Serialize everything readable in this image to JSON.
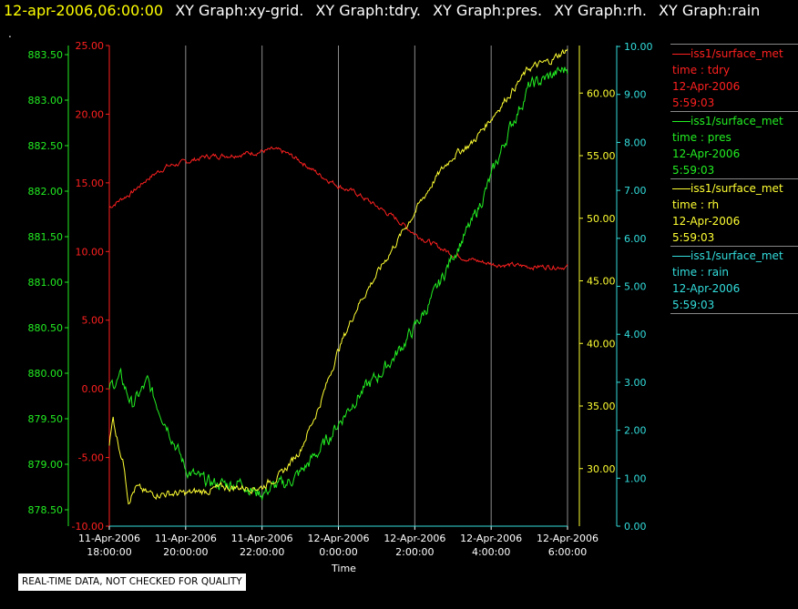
{
  "header": {
    "timestamp": "12-apr-2006,06:00:00",
    "titles": [
      "XY Graph:xy-grid.",
      "XY Graph:tdry.",
      "XY Graph:pres.",
      "XY Graph:rh.",
      "XY Graph:rain"
    ]
  },
  "dot": ".",
  "footer_note": "REAL-TIME DATA, NOT CHECKED FOR QUALITY",
  "colors": {
    "background": "#000000",
    "tdry": "#ff2020",
    "pres": "#22ee22",
    "rh": "#ffff33",
    "rain": "#33dddd",
    "grid": "#ffffff"
  },
  "legend": [
    {
      "source": "iss1/surface_met",
      "var": "time : tdry",
      "date": "12-Apr-2006",
      "time": "5:59:03",
      "color": "#ff2020"
    },
    {
      "source": "iss1/surface_met",
      "var": "time : pres",
      "date": "12-Apr-2006",
      "time": "5:59:03",
      "color": "#22ee22"
    },
    {
      "source": "iss1/surface_met",
      "var": "time : rh",
      "date": "12-Apr-2006",
      "time": "5:59:03",
      "color": "#ffff33"
    },
    {
      "source": "iss1/surface_met",
      "var": "time : rain",
      "date": "12-Apr-2006",
      "time": "5:59:03",
      "color": "#33dddd"
    }
  ],
  "chart_data": {
    "type": "line",
    "xlabel": "Time",
    "x_ticks": [
      {
        "date": "11-Apr-2006",
        "time": "18:00:00"
      },
      {
        "date": "11-Apr-2006",
        "time": "20:00:00"
      },
      {
        "date": "11-Apr-2006",
        "time": "22:00:00"
      },
      {
        "date": "12-Apr-2006",
        "time": "0:00:00"
      },
      {
        "date": "12-Apr-2006",
        "time": "2:00:00"
      },
      {
        "date": "12-Apr-2006",
        "time": "4:00:00"
      },
      {
        "date": "12-Apr-2006",
        "time": "6:00:00"
      }
    ],
    "x_hours": [
      0,
      2,
      4,
      6,
      8,
      10,
      12
    ],
    "xlim": [
      0,
      12
    ],
    "grid": "vertical lines at x ticks",
    "axes": {
      "pres": {
        "ticks": [
          "878.50",
          "879.00",
          "879.50",
          "880.00",
          "880.50",
          "881.00",
          "881.50",
          "882.00",
          "882.50",
          "883.00",
          "883.50"
        ],
        "ylim": [
          878.32,
          883.6
        ],
        "color": "#22ee22"
      },
      "tdry": {
        "ticks": [
          "-10.00",
          "-5.00",
          "0.00",
          "5.00",
          "10.00",
          "15.00",
          "20.00",
          "25.00"
        ],
        "ylim": [
          -10,
          25
        ],
        "color": "#ff2020"
      },
      "rh": {
        "ticks": [
          "30.00",
          "35.00",
          "40.00",
          "45.00",
          "50.00",
          "55.00",
          "60.00"
        ],
        "ylim": [
          25.4,
          63.8
        ],
        "color": "#ffff33"
      },
      "rain": {
        "ticks": [
          "0.00",
          "1.00",
          "2.00",
          "3.00",
          "4.00",
          "5.00",
          "6.00",
          "7.00",
          "8.00",
          "9.00",
          "10.00"
        ],
        "ylim": [
          0,
          10.02
        ],
        "color": "#33dddd"
      }
    },
    "series": [
      {
        "name": "tdry",
        "axis": "tdry",
        "noise": 0.15,
        "x": [
          0,
          0.3,
          0.6,
          1,
          1.5,
          2,
          2.5,
          3,
          3.5,
          4,
          4.3,
          4.6,
          5,
          5.5,
          6,
          6.5,
          7,
          7.5,
          8,
          8.5,
          9,
          9.5,
          10,
          10.5,
          11,
          11.5,
          12
        ],
        "y": [
          13.2,
          13.8,
          14.3,
          15.3,
          16.2,
          16.5,
          16.9,
          17.0,
          17.1,
          17.3,
          17.4,
          17.2,
          16.6,
          15.6,
          14.8,
          14.2,
          13.3,
          12.4,
          11.3,
          10.5,
          9.8,
          9.4,
          9.1,
          9.0,
          8.9,
          8.9,
          8.9
        ]
      },
      {
        "name": "pres",
        "axis": "pres",
        "noise": 0.06,
        "x": [
          0,
          0.3,
          0.6,
          1,
          1.2,
          1.5,
          1.8,
          2,
          2.3,
          2.6,
          3,
          3.5,
          3.8,
          4,
          4.3,
          4.6,
          5,
          5.3,
          5.6,
          6,
          6.5,
          7,
          7.5,
          8,
          8.5,
          9,
          9.5,
          10,
          10.5,
          11,
          11.5,
          12
        ],
        "y": [
          879.85,
          879.95,
          879.65,
          879.9,
          879.7,
          879.45,
          879.15,
          878.95,
          878.85,
          878.8,
          878.78,
          878.8,
          878.7,
          878.68,
          878.75,
          878.78,
          878.9,
          879.05,
          879.2,
          879.45,
          879.75,
          879.95,
          880.2,
          880.5,
          880.85,
          881.3,
          881.65,
          882.15,
          882.7,
          883.15,
          883.25,
          883.35
        ]
      },
      {
        "name": "rh",
        "axis": "rh",
        "noise": 0.25,
        "x": [
          0,
          0.1,
          0.2,
          0.4,
          0.5,
          0.7,
          1,
          1.5,
          2,
          2.5,
          3,
          3.5,
          4,
          4.2,
          4.5,
          5,
          5.5,
          6,
          6.5,
          7,
          7.5,
          8,
          8.5,
          9,
          9.5,
          10,
          10.5,
          11,
          11.5,
          12
        ],
        "y": [
          32,
          34,
          32.5,
          30,
          27.5,
          28.5,
          28,
          28,
          28,
          28.2,
          28.5,
          28.5,
          28.5,
          29,
          29.5,
          31.5,
          35,
          39.5,
          43,
          45.5,
          48,
          50.5,
          53,
          55,
          56,
          58,
          60,
          62,
          62.5,
          63.5
        ]
      },
      {
        "name": "rain",
        "axis": "rain",
        "noise": 0,
        "x": [
          0,
          12
        ],
        "y": [
          0,
          0
        ]
      }
    ]
  }
}
